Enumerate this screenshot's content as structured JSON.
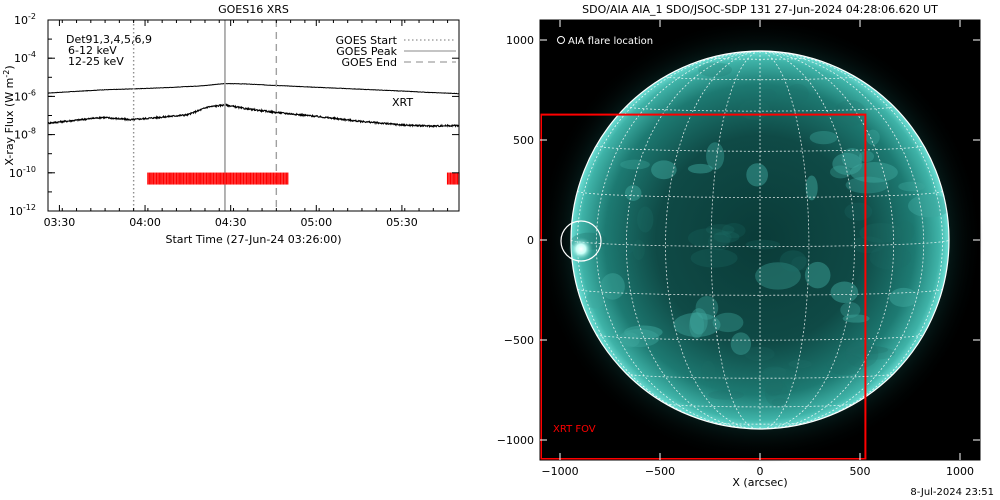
{
  "chart_data": [
    {
      "type": "line",
      "title": "GOES16 XRS",
      "xlabel": "Start Time (27-Jun-24 03:26:00)",
      "ylabel": "X-ray Flux (W m",
      "ylabel_sup": "-2",
      "ylabel_close": ")",
      "y_scale": "log",
      "xlim": [
        "03:26",
        "05:50"
      ],
      "ylim": [
        1e-12,
        0.01
      ],
      "x_ticks": [
        "03:30",
        "04:00",
        "04:30",
        "05:00",
        "05:30"
      ],
      "x_tick_minutes": [
        4,
        34,
        64,
        94,
        124
      ],
      "y_ticks": [
        {
          "base": "10",
          "exp": "-12",
          "value": 1e-12
        },
        {
          "base": "10",
          "exp": "-10",
          "value": 1e-10
        },
        {
          "base": "10",
          "exp": "-8",
          "value": 1e-08
        },
        {
          "base": "10",
          "exp": "-6",
          "value": 1e-06
        },
        {
          "base": "10",
          "exp": "-4",
          "value": 0.0001
        },
        {
          "base": "10",
          "exp": "-2",
          "value": 0.01
        }
      ],
      "detector_label": "Det91,3,4,5,6,9",
      "band_labels": [
        {
          "text": "6-12 keV",
          "color": "#d000d0"
        },
        {
          "text": "12-25 keV",
          "color": "#00cc00"
        }
      ],
      "series": [
        {
          "name": "upper channel",
          "color": "#000000",
          "x": [
            "03:26",
            "03:45",
            "04:00",
            "04:10",
            "04:20",
            "04:28",
            "04:35",
            "04:45",
            "05:00",
            "05:15",
            "05:30",
            "05:40",
            "05:50"
          ],
          "values": [
            1.5e-06,
            2.2e-06,
            2.6e-06,
            3e-06,
            3.6e-06,
            4.7e-06,
            4.5e-06,
            3.8e-06,
            3e-06,
            2.4e-06,
            1.9e-06,
            1.6e-06,
            1.4e-06
          ]
        },
        {
          "name": "lower channel",
          "color": "#000000",
          "x": [
            "03:26",
            "03:35",
            "03:45",
            "03:55",
            "04:05",
            "04:15",
            "04:22",
            "04:28",
            "04:35",
            "04:45",
            "05:00",
            "05:15",
            "05:30",
            "05:40",
            "05:50"
          ],
          "values": [
            4e-08,
            5.5e-08,
            8e-08,
            6e-08,
            8e-08,
            1.1e-07,
            2.8e-07,
            3.6e-07,
            2.3e-07,
            1.5e-07,
            9e-08,
            5e-08,
            3.2e-08,
            2.8e-08,
            3e-08
          ]
        }
      ],
      "events": [
        {
          "name": "GOES Start",
          "time": "03:56",
          "style": "dotted",
          "color": "#909090"
        },
        {
          "name": "GOES Peak",
          "time": "04:28",
          "style": "solid",
          "color": "#a0a0a0"
        },
        {
          "name": "GOES End",
          "time": "04:46",
          "style": "dashed",
          "color": "#a0a0a0"
        }
      ],
      "xrt_label": "XRT",
      "xrt_color": "#ff0000",
      "xrt_segments": [
        {
          "start": "04:01",
          "end": "04:50",
          "flux": 5e-11
        },
        {
          "start": "05:46",
          "end": "05:50",
          "flux": 5e-11
        }
      ]
    },
    {
      "type": "image",
      "title": "SDO/AIA AIA_1 SDO/JSOC-SDP 131 27-Jun-2024 04:28:06.620 UT",
      "xlabel": "X (arcsec)",
      "x_ticks": [
        -1000,
        -500,
        0,
        500,
        1000
      ],
      "y_ticks": [
        1000,
        500,
        0,
        -500,
        -1000
      ],
      "x_tick_labels": [
        "−1000",
        "−500",
        "0",
        "500",
        "1000"
      ],
      "y_tick_labels": [
        "1000",
        "500",
        "0",
        "−500",
        "−1000"
      ],
      "xlim": [
        -1100,
        1100
      ],
      "ylim": [
        -1100,
        1100
      ],
      "solar_radius_arcsec": 945,
      "flare_label": "AIA flare location",
      "flare_location": {
        "x": -895,
        "y": -5,
        "radius": 100
      },
      "xrt_fov_label": "XRT FOV",
      "xrt_fov": {
        "x_min": -1100,
        "x_max": 527,
        "y_min": -1100,
        "y_max": 627
      },
      "xrt_color": "#ff0000"
    }
  ],
  "footer_timestamp": "8-Jul-2024 23:51"
}
